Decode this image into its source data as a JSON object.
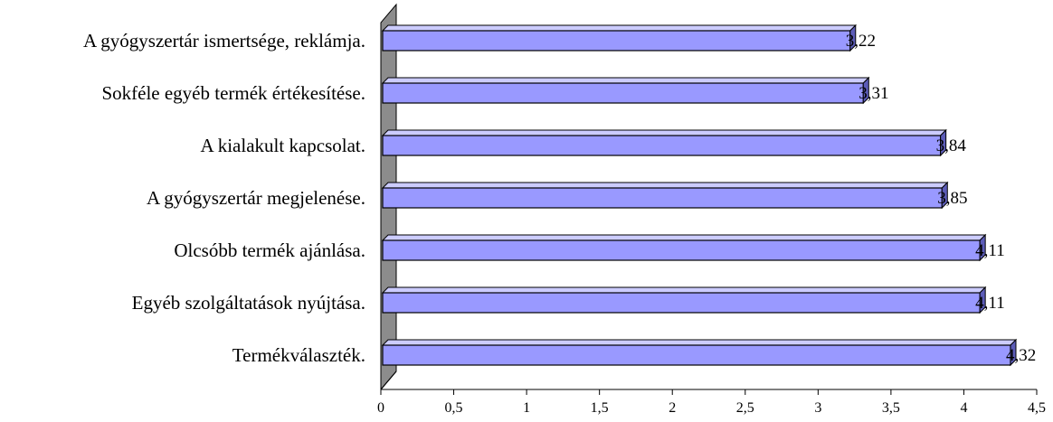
{
  "chart_data": {
    "type": "bar",
    "orientation": "horizontal",
    "style": "3d",
    "categories": [
      "A gyógyszertár ismertsége, reklámja.",
      "Sokféle egyéb termék értékesítése.",
      "A kialakult kapcsolat.",
      "A gyógyszertár megjelenése.",
      "Olcsóbb termék ajánlása.",
      "Egyéb szolgáltatások nyújtása.",
      "Termékválaszték."
    ],
    "values": [
      3.22,
      3.31,
      3.84,
      3.85,
      4.11,
      4.11,
      4.32
    ],
    "data_labels": [
      "3,22",
      "3,31",
      "3,84",
      "3,85",
      "4,11",
      "4,11",
      "4,32"
    ],
    "xlim": [
      0,
      4.5
    ],
    "xticks": [
      0,
      0.5,
      1,
      1.5,
      2,
      2.5,
      3,
      3.5,
      4,
      4.5
    ],
    "xtick_labels": [
      "0",
      "0,5",
      "1",
      "1,5",
      "2",
      "2,5",
      "3",
      "3,5",
      "4",
      "4,5"
    ],
    "grid": false,
    "legend": false,
    "colors": {
      "bar_front": "#9999ff",
      "bar_top": "#ccccff",
      "bar_side": "#5c5cb8",
      "wall": "#8c8c8c",
      "outline": "#000000"
    }
  }
}
